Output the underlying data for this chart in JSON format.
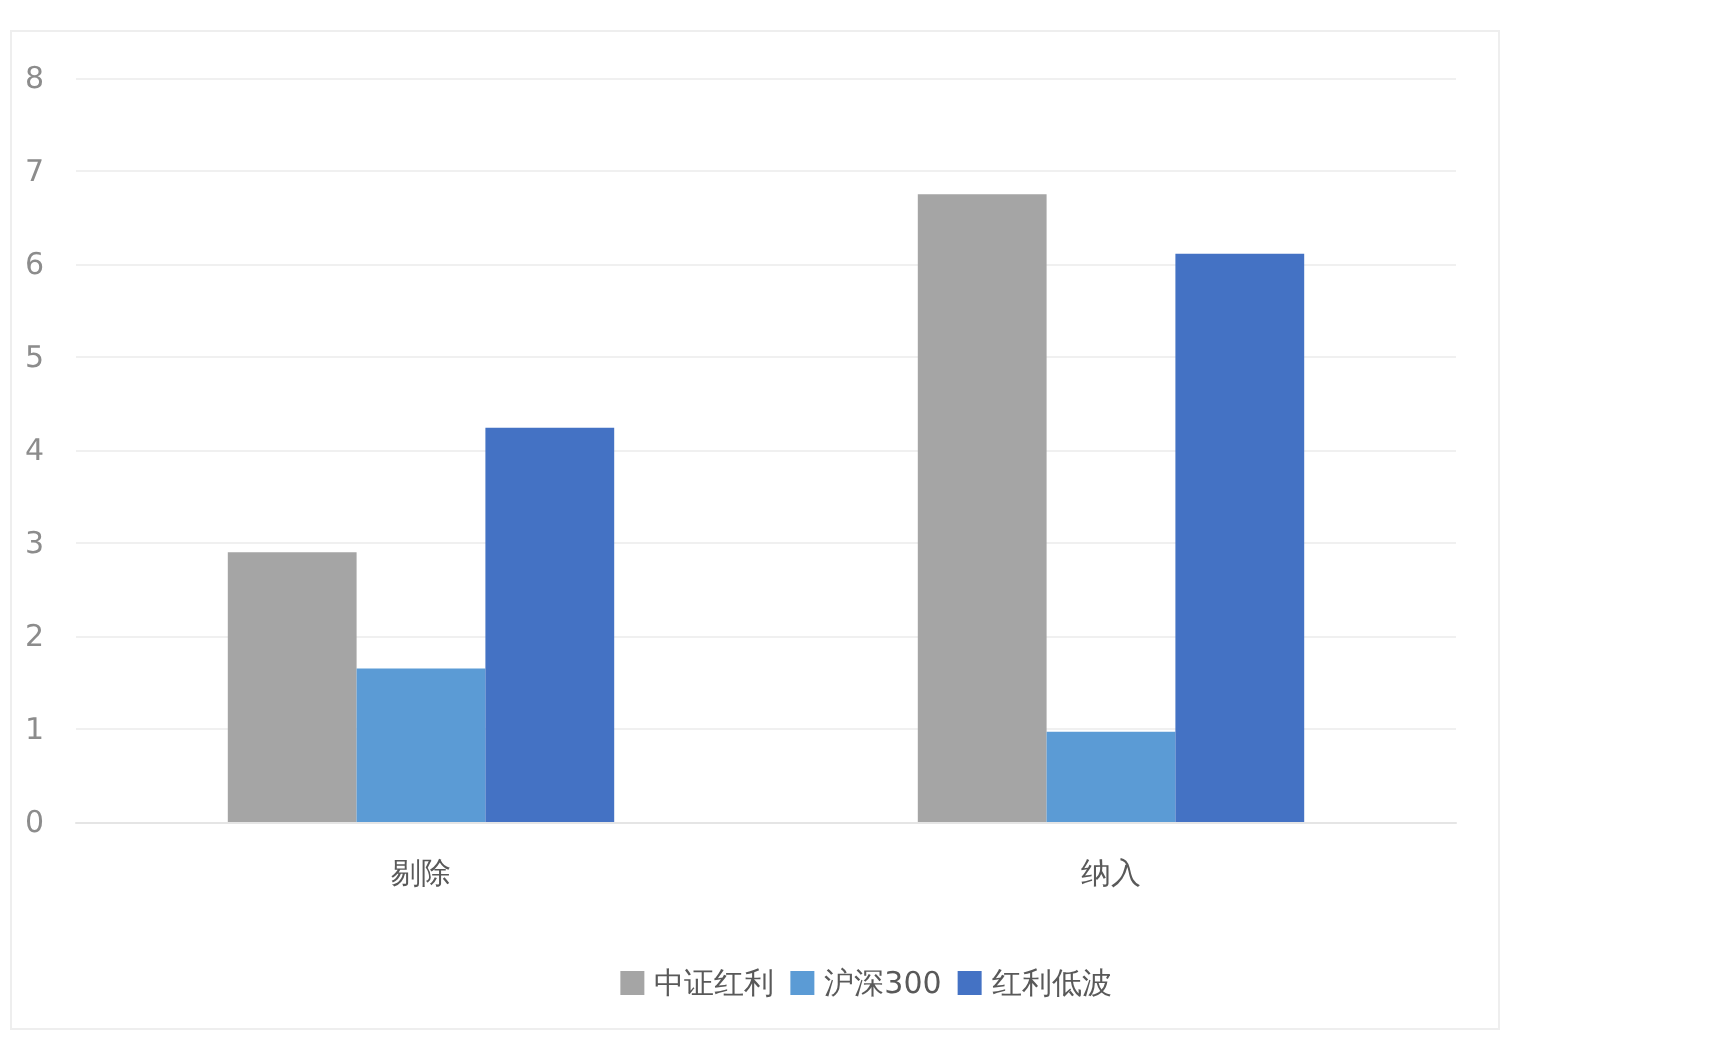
{
  "chart_data": {
    "type": "bar",
    "categories": [
      "剔除",
      "纳入"
    ],
    "series": [
      {
        "name": "中证红利",
        "color": "#a5a5a5",
        "values": [
          2.9,
          6.75
        ]
      },
      {
        "name": "沪深300",
        "color": "#5b9bd5",
        "values": [
          1.65,
          0.97
        ]
      },
      {
        "name": "红利低波",
        "color": "#4472c4",
        "values": [
          4.24,
          6.11
        ]
      }
    ],
    "ylim": [
      0,
      8
    ],
    "yticks": [
      0,
      1,
      2,
      3,
      4,
      5,
      6,
      7,
      8
    ],
    "grid": "y",
    "legend": "bottom"
  }
}
